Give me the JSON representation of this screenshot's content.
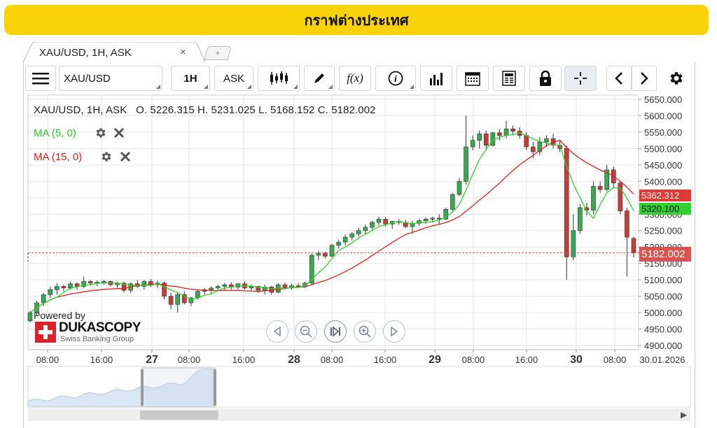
{
  "banner": {
    "title": "กราฟต่างประเทศ"
  },
  "tab": {
    "label": "XAU/USD, 1H, ASK",
    "close": "×",
    "add": "+"
  },
  "toolbar": {
    "menu_icon": "hamburger-menu-icon",
    "symbol": "XAU/USD",
    "period": "1H",
    "side": "ASK",
    "fx_label": "f(x)",
    "info_label": "i",
    "icons": [
      "candlestick-icon",
      "pencil-icon",
      "fx-icon",
      "info-icon",
      "bar-volume-icon",
      "calendar-icon",
      "news-icon",
      "lock-icon",
      "crosshair-icon",
      "chevron-left-icon",
      "chevron-right-icon",
      "gear-icon"
    ]
  },
  "legend": {
    "ohlc": "XAU/USD, 1H, ASK   O. 5226.315 H. 5231.025 L. 5168.152 C. 5182.002",
    "ma1": "MA (5, 0)",
    "ma2": "MA (15, 0)",
    "powered": "Powered by",
    "brand": "DUKASCOPY",
    "brand_sub": "Swiss Banking Group"
  },
  "colors": {
    "bull": "#3aa853",
    "bear": "#c63d35",
    "ma5": "#2fd12f",
    "ma15": "#e2201e",
    "banner": "#f9d307"
  },
  "price_tags": {
    "ma15": "5362.312",
    "ma5": "5320.100",
    "last": "5182.002"
  },
  "chart_data": {
    "type": "candlestick",
    "title": "XAU/USD, 1H, ASK",
    "y_ticks": [
      "5650.000",
      "5600.000",
      "5550.000",
      "5500.000",
      "5450.000",
      "5400.000",
      "5350.000",
      "5300.000",
      "5250.000",
      "5200.000",
      "5150.000",
      "5100.000",
      "5050.000",
      "5000.000",
      "4950.000",
      "4900.000"
    ],
    "ylim": [
      4900,
      5650
    ],
    "x_ticks": [
      {
        "label": "08:00",
        "bold": false
      },
      {
        "label": "16:00",
        "bold": false
      },
      {
        "label": "27",
        "bold": true
      },
      {
        "label": "08:00",
        "bold": false
      },
      {
        "label": "16:00",
        "bold": false
      },
      {
        "label": "28",
        "bold": true
      },
      {
        "label": "08:00",
        "bold": false
      },
      {
        "label": "16:00",
        "bold": false
      },
      {
        "label": "29",
        "bold": true
      },
      {
        "label": "08:00",
        "bold": false
      },
      {
        "label": "16:00",
        "bold": false
      },
      {
        "label": "30",
        "bold": true
      },
      {
        "label": "08:00",
        "bold": false
      },
      {
        "label": "30.01.2026",
        "bold": false
      }
    ],
    "last_price": 5182.002,
    "candles": [
      [
        4975,
        5005,
        4970,
        5000
      ],
      [
        5000,
        5035,
        4990,
        5030
      ],
      [
        5030,
        5060,
        5020,
        5055
      ],
      [
        5055,
        5080,
        5045,
        5070
      ],
      [
        5070,
        5090,
        5055,
        5080
      ],
      [
        5080,
        5085,
        5065,
        5075
      ],
      [
        5075,
        5095,
        5070,
        5088
      ],
      [
        5088,
        5092,
        5070,
        5080
      ],
      [
        5080,
        5110,
        5075,
        5095
      ],
      [
        5095,
        5100,
        5082,
        5090
      ],
      [
        5090,
        5098,
        5080,
        5093
      ],
      [
        5093,
        5100,
        5085,
        5095
      ],
      [
        5095,
        5098,
        5080,
        5085
      ],
      [
        5085,
        5095,
        5075,
        5090
      ],
      [
        5090,
        5095,
        5062,
        5068
      ],
      [
        5068,
        5092,
        5060,
        5088
      ],
      [
        5088,
        5100,
        5075,
        5080
      ],
      [
        5080,
        5100,
        5070,
        5095
      ],
      [
        5095,
        5102,
        5078,
        5085
      ],
      [
        5085,
        5098,
        5075,
        5090
      ],
      [
        5090,
        5095,
        5040,
        5050
      ],
      [
        5050,
        5060,
        5010,
        5025
      ],
      [
        5025,
        5060,
        5000,
        5055
      ],
      [
        5055,
        5065,
        5025,
        5030
      ],
      [
        5030,
        5048,
        5020,
        5045
      ],
      [
        5045,
        5070,
        5040,
        5065
      ],
      [
        5065,
        5075,
        5055,
        5070
      ],
      [
        5070,
        5080,
        5058,
        5075
      ],
      [
        5075,
        5085,
        5065,
        5080
      ],
      [
        5080,
        5090,
        5070,
        5085
      ],
      [
        5085,
        5092,
        5070,
        5078
      ],
      [
        5078,
        5090,
        5070,
        5088
      ],
      [
        5088,
        5095,
        5070,
        5075
      ],
      [
        5075,
        5085,
        5065,
        5080
      ],
      [
        5080,
        5082,
        5060,
        5068
      ],
      [
        5068,
        5085,
        5055,
        5078
      ],
      [
        5078,
        5082,
        5055,
        5062
      ],
      [
        5062,
        5090,
        5060,
        5085
      ],
      [
        5085,
        5092,
        5070,
        5075
      ],
      [
        5075,
        5088,
        5070,
        5082
      ],
      [
        5082,
        5090,
        5075,
        5080
      ],
      [
        5080,
        5095,
        5075,
        5090
      ],
      [
        5090,
        5180,
        5085,
        5175
      ],
      [
        5175,
        5188,
        5160,
        5180
      ],
      [
        5180,
        5186,
        5165,
        5172
      ],
      [
        5172,
        5210,
        5170,
        5205
      ],
      [
        5205,
        5222,
        5195,
        5215
      ],
      [
        5215,
        5238,
        5205,
        5230
      ],
      [
        5230,
        5246,
        5220,
        5240
      ],
      [
        5240,
        5258,
        5232,
        5250
      ],
      [
        5250,
        5268,
        5240,
        5260
      ],
      [
        5260,
        5280,
        5250,
        5275
      ],
      [
        5275,
        5292,
        5265,
        5285
      ],
      [
        5285,
        5292,
        5262,
        5270
      ],
      [
        5270,
        5280,
        5255,
        5278
      ],
      [
        5278,
        5285,
        5268,
        5275
      ],
      [
        5275,
        5282,
        5258,
        5262
      ],
      [
        5262,
        5280,
        5240,
        5272
      ],
      [
        5272,
        5285,
        5265,
        5280
      ],
      [
        5280,
        5290,
        5270,
        5285
      ],
      [
        5285,
        5292,
        5275,
        5288
      ],
      [
        5288,
        5300,
        5270,
        5285
      ],
      [
        5285,
        5320,
        5282,
        5315
      ],
      [
        5315,
        5365,
        5310,
        5360
      ],
      [
        5360,
        5410,
        5355,
        5400
      ],
      [
        5400,
        5600,
        5390,
        5505
      ],
      [
        5505,
        5540,
        5495,
        5525
      ],
      [
        5525,
        5555,
        5500,
        5545
      ],
      [
        5545,
        5555,
        5500,
        5510
      ],
      [
        5510,
        5550,
        5505,
        5548
      ],
      [
        5548,
        5560,
        5525,
        5540
      ],
      [
        5540,
        5585,
        5530,
        5560
      ],
      [
        5560,
        5570,
        5540,
        5553
      ],
      [
        5553,
        5565,
        5530,
        5540
      ],
      [
        5540,
        5550,
        5495,
        5505
      ],
      [
        5505,
        5520,
        5470,
        5490
      ],
      [
        5490,
        5535,
        5480,
        5520
      ],
      [
        5520,
        5540,
        5505,
        5530
      ],
      [
        5530,
        5545,
        5500,
        5510
      ],
      [
        5510,
        5525,
        5490,
        5500
      ],
      [
        5500,
        5510,
        5100,
        5170
      ],
      [
        5170,
        5300,
        5160,
        5250
      ],
      [
        5250,
        5330,
        5240,
        5320
      ],
      [
        5320,
        5335,
        5295,
        5312
      ],
      [
        5312,
        5400,
        5300,
        5385
      ],
      [
        5385,
        5400,
        5365,
        5375
      ],
      [
        5375,
        5450,
        5370,
        5435
      ],
      [
        5435,
        5445,
        5380,
        5395
      ],
      [
        5395,
        5400,
        5300,
        5310
      ],
      [
        5310,
        5320,
        5110,
        5230
      ],
      [
        5226.315,
        5231.025,
        5168.152,
        5182.002
      ]
    ]
  }
}
